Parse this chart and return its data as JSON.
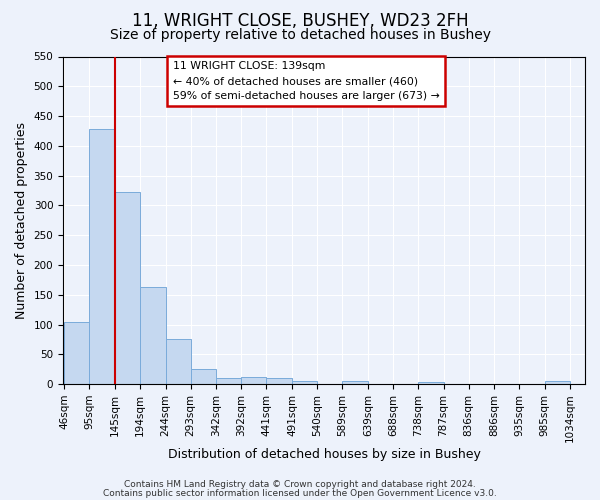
{
  "title1": "11, WRIGHT CLOSE, BUSHEY, WD23 2FH",
  "title2": "Size of property relative to detached houses in Bushey",
  "xlabel": "Distribution of detached houses by size in Bushey",
  "ylabel": "Number of detached properties",
  "bar_values": [
    105,
    428,
    322,
    163,
    75,
    26,
    10,
    12,
    11,
    5,
    0,
    5,
    0,
    0,
    3,
    0,
    0,
    0,
    0,
    5
  ],
  "bar_labels": [
    "46sqm",
    "95sqm",
    "145sqm",
    "194sqm",
    "244sqm",
    "293sqm",
    "342sqm",
    "392sqm",
    "441sqm",
    "491sqm",
    "540sqm",
    "589sqm",
    "639sqm",
    "688sqm",
    "738sqm",
    "787sqm",
    "836sqm",
    "886sqm",
    "935sqm",
    "985sqm",
    "1034sqm"
  ],
  "bin_edges": [
    46,
    95,
    145,
    194,
    244,
    293,
    342,
    392,
    441,
    491,
    540,
    589,
    639,
    688,
    738,
    787,
    836,
    886,
    935,
    985,
    1034
  ],
  "bar_color": "#c5d8f0",
  "bar_edge_color": "#7aabda",
  "ylim": [
    0,
    550
  ],
  "yticks": [
    0,
    50,
    100,
    150,
    200,
    250,
    300,
    350,
    400,
    450,
    500,
    550
  ],
  "vline_x": 145,
  "vline_color": "#cc0000",
  "annotation_line1": "11 WRIGHT CLOSE: 139sqm",
  "annotation_line2": "← 40% of detached houses are smaller (460)",
  "annotation_line3": "59% of semi-detached houses are larger (673) →",
  "annotation_box_color": "#cc0000",
  "footer1": "Contains HM Land Registry data © Crown copyright and database right 2024.",
  "footer2": "Contains public sector information licensed under the Open Government Licence v3.0.",
  "bg_color": "#edf2fb",
  "title1_fontsize": 12,
  "title2_fontsize": 10,
  "tick_label_fontsize": 7.5,
  "axis_label_fontsize": 9,
  "footer_fontsize": 6.5
}
